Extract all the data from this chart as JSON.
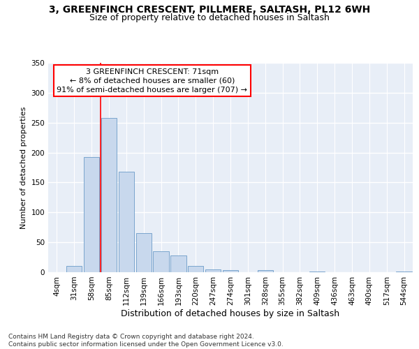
{
  "title1": "3, GREENFINCH CRESCENT, PILLMERE, SALTASH, PL12 6WH",
  "title2": "Size of property relative to detached houses in Saltash",
  "xlabel": "Distribution of detached houses by size in Saltash",
  "ylabel": "Number of detached properties",
  "bar_color": "#c8d8ed",
  "bar_edge_color": "#6b9bc8",
  "categories": [
    "4sqm",
    "31sqm",
    "58sqm",
    "85sqm",
    "112sqm",
    "139sqm",
    "166sqm",
    "193sqm",
    "220sqm",
    "247sqm",
    "274sqm",
    "301sqm",
    "328sqm",
    "355sqm",
    "382sqm",
    "409sqm",
    "436sqm",
    "463sqm",
    "490sqm",
    "517sqm",
    "544sqm"
  ],
  "values": [
    0,
    10,
    192,
    258,
    168,
    65,
    35,
    28,
    11,
    5,
    4,
    0,
    3,
    0,
    0,
    1,
    0,
    0,
    0,
    0,
    1
  ],
  "ylim": [
    0,
    350
  ],
  "yticks": [
    0,
    50,
    100,
    150,
    200,
    250,
    300,
    350
  ],
  "annotation_box_text": "3 GREENFINCH CRESCENT: 71sqm\n← 8% of detached houses are smaller (60)\n91% of semi-detached houses are larger (707) →",
  "footer_text": "Contains HM Land Registry data © Crown copyright and database right 2024.\nContains public sector information licensed under the Open Government Licence v3.0.",
  "bg_color": "#e8eef7",
  "grid_color": "#ffffff",
  "title1_fontsize": 10,
  "title2_fontsize": 9,
  "xlabel_fontsize": 9,
  "ylabel_fontsize": 8,
  "tick_fontsize": 7.5,
  "annotation_fontsize": 8,
  "footer_fontsize": 6.5,
  "red_line_index": 2.5
}
